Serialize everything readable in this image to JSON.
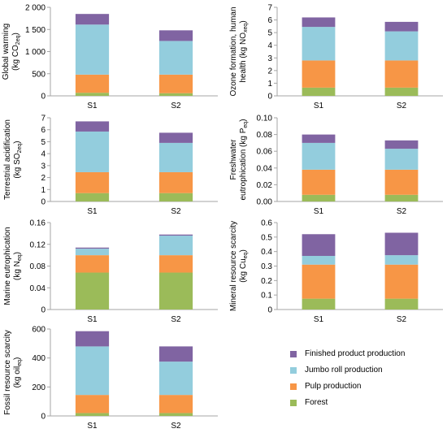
{
  "chart_data": [
    {
      "type": "bar",
      "stacked": true,
      "ylabel": [
        "Global warming",
        "(kg CO",
        "2eq",
        ")"
      ],
      "categories": [
        "S1",
        "S2"
      ],
      "ylim": [
        0,
        2000
      ],
      "yticks": [
        "0",
        "500",
        "1 000",
        "1 500",
        "2 000"
      ],
      "series": [
        {
          "name": "Forest",
          "values": [
            70,
            60
          ]
        },
        {
          "name": "Pulp production",
          "values": [
            410,
            420
          ]
        },
        {
          "name": "Jumbo roll production",
          "values": [
            1130,
            760
          ]
        },
        {
          "name": "Finished product production",
          "values": [
            240,
            240
          ]
        }
      ]
    },
    {
      "type": "bar",
      "stacked": true,
      "ylabel": [
        "Ozone formation, human",
        "health (kg NO",
        "xeq",
        ")"
      ],
      "categories": [
        "S1",
        "S2"
      ],
      "ylim": [
        0,
        7
      ],
      "yticks": [
        "0",
        "1",
        "2",
        "3",
        "4",
        "5",
        "6",
        "7"
      ],
      "series": [
        {
          "name": "Forest",
          "values": [
            0.65,
            0.65
          ]
        },
        {
          "name": "Pulp production",
          "values": [
            2.15,
            2.15
          ]
        },
        {
          "name": "Jumbo roll production",
          "values": [
            2.65,
            2.3
          ]
        },
        {
          "name": "Finished product production",
          "values": [
            0.75,
            0.75
          ]
        }
      ]
    },
    {
      "type": "bar",
      "stacked": true,
      "ylabel": [
        "Terrestrial acidification",
        "(kg SO",
        "2eq",
        ")"
      ],
      "categories": [
        "S1",
        "S2"
      ],
      "ylim": [
        0,
        7
      ],
      "yticks": [
        "0",
        "1",
        "2",
        "3",
        "4",
        "5",
        "6",
        "7"
      ],
      "series": [
        {
          "name": "Forest",
          "values": [
            0.7,
            0.7
          ]
        },
        {
          "name": "Pulp production",
          "values": [
            1.75,
            1.75
          ]
        },
        {
          "name": "Jumbo roll production",
          "values": [
            3.4,
            2.45
          ]
        },
        {
          "name": "Finished product production",
          "values": [
            0.85,
            0.85
          ]
        }
      ]
    },
    {
      "type": "bar",
      "stacked": true,
      "ylabel": [
        "Freshwater",
        "eutrophication (kg P",
        "eq",
        ")"
      ],
      "categories": [
        "S1",
        "S2"
      ],
      "ylim": [
        0,
        0.1
      ],
      "yticks": [
        "0.00",
        "0.02",
        "0.04",
        "0.06",
        "0.08",
        "0.10"
      ],
      "series": [
        {
          "name": "Forest",
          "values": [
            0.008,
            0.008
          ]
        },
        {
          "name": "Pulp production",
          "values": [
            0.03,
            0.03
          ]
        },
        {
          "name": "Jumbo roll production",
          "values": [
            0.032,
            0.025
          ]
        },
        {
          "name": "Finished product production",
          "values": [
            0.01,
            0.01
          ]
        }
      ]
    },
    {
      "type": "bar",
      "stacked": true,
      "ylabel": [
        "Marine eutrophication",
        "(kg N",
        "eq",
        ")"
      ],
      "categories": [
        "S1",
        "S2"
      ],
      "ylim": [
        0,
        0.16
      ],
      "yticks": [
        "0",
        "0.04",
        "0.08",
        "0.12",
        "0.16"
      ],
      "series": [
        {
          "name": "Forest",
          "values": [
            0.068,
            0.068
          ]
        },
        {
          "name": "Pulp production",
          "values": [
            0.032,
            0.032
          ]
        },
        {
          "name": "Jumbo roll production",
          "values": [
            0.012,
            0.036
          ]
        },
        {
          "name": "Finished product production",
          "values": [
            0.002,
            0.002
          ]
        }
      ]
    },
    {
      "type": "bar",
      "stacked": true,
      "ylabel": [
        "Mineral resource scarcity",
        "(kg Cu",
        "eq",
        ")"
      ],
      "categories": [
        "S1",
        "S2"
      ],
      "ylim": [
        0,
        0.6
      ],
      "yticks": [
        "0",
        "0.1",
        "0.2",
        "0.3",
        "0.4",
        "0.5",
        "0.6"
      ],
      "series": [
        {
          "name": "Forest",
          "values": [
            0.075,
            0.075
          ]
        },
        {
          "name": "Pulp production",
          "values": [
            0.235,
            0.235
          ]
        },
        {
          "name": "Jumbo roll production",
          "values": [
            0.06,
            0.065
          ]
        },
        {
          "name": "Finished product production",
          "values": [
            0.15,
            0.155
          ]
        }
      ]
    },
    {
      "type": "bar",
      "stacked": true,
      "ylabel": [
        "Fossil resource scarcity",
        "(kg oil",
        "eq",
        ")"
      ],
      "categories": [
        "S1",
        "S2"
      ],
      "ylim": [
        0,
        600
      ],
      "yticks": [
        "0",
        "200",
        "400",
        "600"
      ],
      "series": [
        {
          "name": "Forest",
          "values": [
            20,
            20
          ]
        },
        {
          "name": "Pulp production",
          "values": [
            125,
            125
          ]
        },
        {
          "name": "Jumbo roll production",
          "values": [
            335,
            230
          ]
        },
        {
          "name": "Finished product production",
          "values": [
            105,
            105
          ]
        }
      ]
    }
  ],
  "colors": {
    "Forest": "#9BBB59",
    "Pulp production": "#F79646",
    "Jumbo roll production": "#93CDDD",
    "Finished product production": "#8064A2",
    "axis": "#A6A6A6"
  },
  "legend": {
    "items": [
      {
        "label": "Finished product production",
        "color": "#8064A2"
      },
      {
        "label": "Jumbo roll production",
        "color": "#93CDDD"
      },
      {
        "label": "Pulp production",
        "color": "#F79646"
      },
      {
        "label": "Forest",
        "color": "#9BBB59"
      }
    ]
  }
}
